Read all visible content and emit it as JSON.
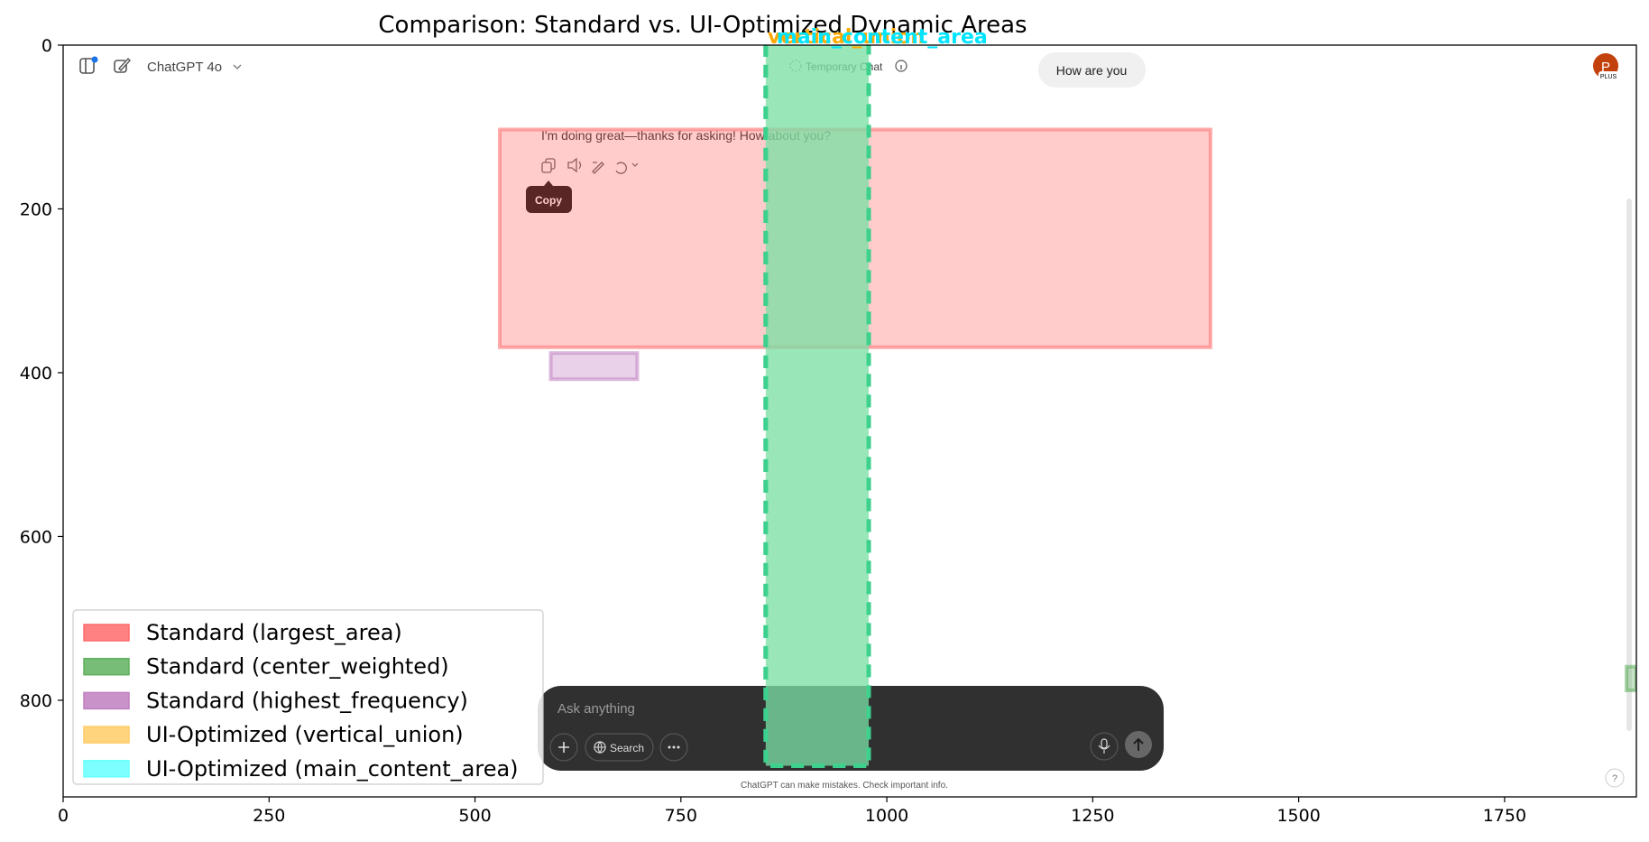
{
  "chart_data": {
    "type": "overlay-boxes",
    "title": "Comparison: Standard vs. UI-Optimized Dynamic Areas",
    "xlim": [
      0,
      1910
    ],
    "ylim": [
      0,
      918
    ],
    "y_inverted": true,
    "x_ticks": [
      0,
      250,
      500,
      750,
      1000,
      1250,
      1500,
      1750
    ],
    "y_ticks": [
      0,
      200,
      400,
      600,
      800
    ],
    "legend_position": "lower-left",
    "legend": [
      {
        "label": "Standard (largest_area)",
        "color": "#ff6b6b"
      },
      {
        "label": "Standard (center_weighted)",
        "color": "#5fb05f"
      },
      {
        "label": "Standard (highest_frequency)",
        "color": "#bf7fbf"
      },
      {
        "label": "UI-Optimized (vertical_union)",
        "color": "#ffcc66"
      },
      {
        "label": "UI-Optimized (main_content_area)",
        "color": "#66ffff"
      }
    ],
    "regions": [
      {
        "series": "Standard (largest_area)",
        "x0": 530,
        "y0": 103,
        "x1": 1393,
        "y1": 369
      },
      {
        "series": "Standard (highest_frequency)",
        "x0": 592,
        "y0": 376,
        "x1": 697,
        "y1": 408
      },
      {
        "series": "Standard (center_weighted)",
        "x0": 1898,
        "y0": 759,
        "x1": 1910,
        "y1": 788
      },
      {
        "series": "UI-Optimized (main_content_area)",
        "x0": 853,
        "y0": -5,
        "x1": 978,
        "y1": 880
      }
    ],
    "overlap_labels": [
      {
        "text": "vertical_union",
        "color": "#ffaa00"
      },
      {
        "text": "main_content_area",
        "color": "#00e5ff"
      }
    ]
  },
  "screenshot": {
    "model_label": "ChatGPT 4o",
    "temporary_chat": "Temporary Chat",
    "user_message": "How are you",
    "assistant_message": "I'm doing great—thanks for asking! How about you?",
    "copy_tooltip": "Copy",
    "input_placeholder": "Ask anything",
    "search_button": "Search",
    "disclaimer": "ChatGPT can make mistakes. Check important info.",
    "avatar_letter": "P",
    "avatar_badge": "PLUS",
    "help": "?",
    "colors": {
      "input_bg": "#303030",
      "avatar": "#c2410c",
      "tooltip": "#000000",
      "bubble": "#f0f0f0"
    }
  }
}
